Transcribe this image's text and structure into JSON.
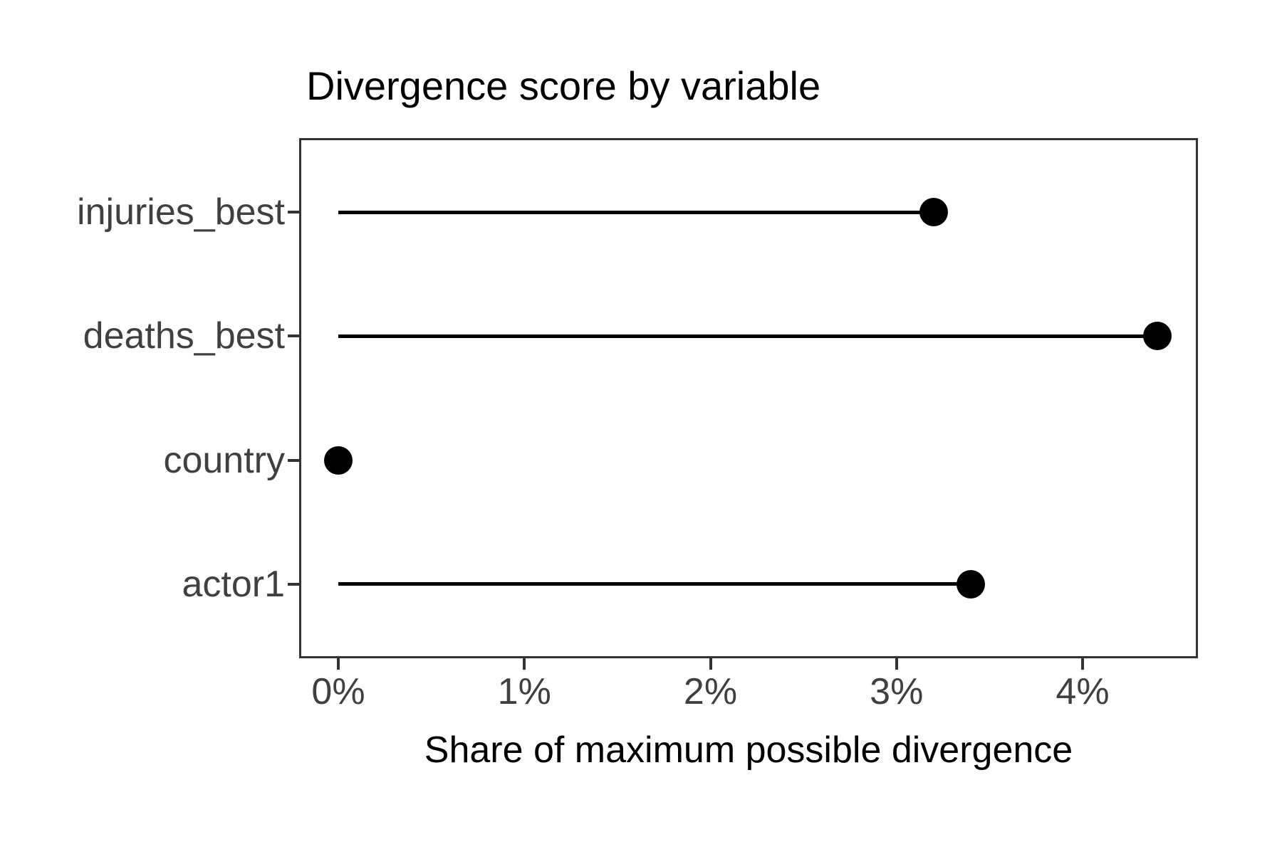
{
  "title": "Divergence score by variable",
  "chart_data": {
    "type": "scatter",
    "style": "lollipop",
    "orientation": "horizontal",
    "title": "Divergence score by variable",
    "xlabel": "Share of maximum possible divergence",
    "ylabel": "",
    "categories": [
      "injuries_best",
      "deaths_best",
      "country",
      "actor1"
    ],
    "series": [
      {
        "name": "Share of maximum possible divergence (%)",
        "values": [
          3.2,
          4.4,
          0.0,
          3.4
        ]
      }
    ],
    "x_ticks": [
      {
        "value": 0,
        "label": "0%"
      },
      {
        "value": 1,
        "label": "1%"
      },
      {
        "value": 2,
        "label": "2%"
      },
      {
        "value": 3,
        "label": "3%"
      },
      {
        "value": 4,
        "label": "4%"
      }
    ],
    "xlim_pct": [
      -0.21,
      4.62
    ],
    "grid": false,
    "legend": false,
    "colors": {
      "point": "#000000",
      "stem": "#000000",
      "panel_border": "#333333",
      "axis_text": "#404040",
      "title_text": "#000000",
      "background": "#ffffff"
    }
  }
}
